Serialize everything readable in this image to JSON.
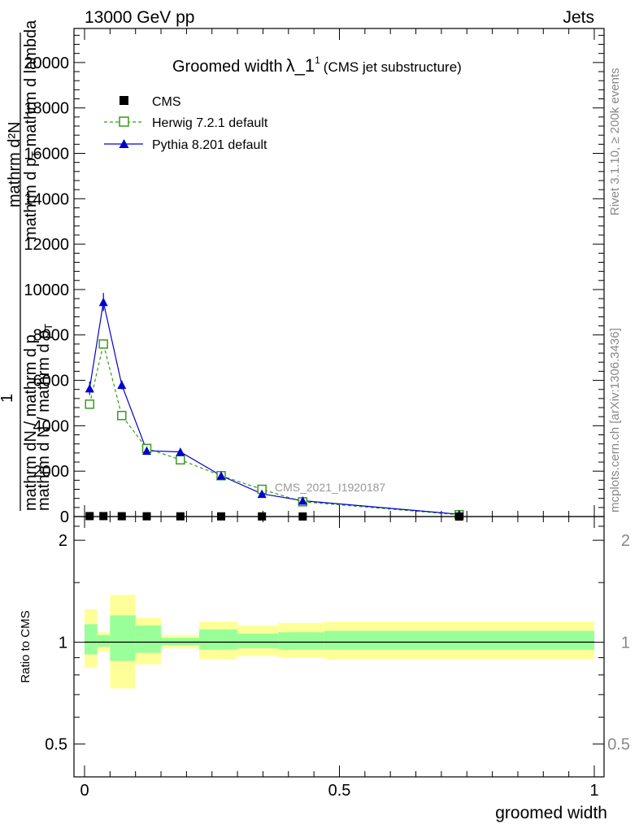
{
  "header": {
    "left": "13000 GeV pp",
    "right": "Jets",
    "rivet": "Rivet 3.1.10, ≥ 200k events",
    "mcplots": "mcplots.cern.ch [arXiv:1306.3436]",
    "analysis": "CMS_2021_I1920187"
  },
  "title": {
    "main": "Groomed width",
    "lambda": "λ_1",
    "sup": "1",
    "sub": "(CMS jet substructure)"
  },
  "ylabel": {
    "one": "1",
    "top1": "mathrm d²N",
    "top2": "mathrm d p",
    "top2_sub": "T",
    "top2_tail": " mathrm d lambda",
    "bottom1": "mathrm dN / mathrm d p",
    "bottom2": "mathrm d N / mathrm d p",
    "bottom2_sub": "T"
  },
  "legend": {
    "cms": "CMS",
    "herwig": "Herwig 7.2.1 default",
    "pythia": "Pythia 8.201 default"
  },
  "colors": {
    "cms": "#000000",
    "herwig": "#3a9a1e",
    "pythia": "#0000cc",
    "band_outer": "#ffff99",
    "band_inner": "#99ff99"
  },
  "chart_data": [
    {
      "type": "line",
      "xlabel": "",
      "ylabel": "1 / mathrm dN / mathrm d p_T · mathrm d²N / mathrm d p_T mathrm d lambda",
      "xlim": [
        0,
        1
      ],
      "ylim": [
        0,
        21500
      ],
      "y_ticks": [
        0,
        2000,
        4000,
        6000,
        8000,
        10000,
        12000,
        14000,
        16000,
        18000,
        20000
      ],
      "y_tick_labels": [
        "0",
        "2000",
        "4000",
        "6000",
        "8000",
        "10000",
        "12000",
        "14000",
        "16000",
        "18000",
        "20000"
      ],
      "series": [
        {
          "name": "CMS",
          "x": [
            0.01,
            0.037,
            0.073,
            0.122,
            0.188,
            0.268,
            0.348,
            0.428,
            0.735
          ],
          "y": [
            20,
            20,
            15,
            12,
            10,
            8,
            6,
            4,
            2
          ]
        },
        {
          "name": "Herwig 7.2.1 default",
          "x": [
            0.01,
            0.037,
            0.073,
            0.122,
            0.188,
            0.268,
            0.348,
            0.428,
            0.735
          ],
          "y": [
            4950,
            7600,
            4450,
            3000,
            2500,
            1800,
            1200,
            650,
            80
          ]
        },
        {
          "name": "Pythia 8.201 default",
          "x": [
            0.01,
            0.037,
            0.073,
            0.122,
            0.188,
            0.268,
            0.348,
            0.428,
            0.735
          ],
          "y": [
            5650,
            9450,
            5800,
            2900,
            2850,
            1800,
            1000,
            700,
            100
          ],
          "yerr": [
            300,
            400,
            200,
            80,
            80,
            60,
            40,
            30,
            10
          ]
        }
      ]
    },
    {
      "type": "area",
      "xlabel": "groomed width",
      "ylabel": "Ratio to CMS",
      "xlim": [
        0,
        1
      ],
      "ylim": [
        0.4,
        2.35
      ],
      "log_y": true,
      "y_ticks": [
        0.5,
        1,
        2
      ],
      "y_tick_labels": [
        "0.5",
        "1",
        "2"
      ],
      "x_ticks": [
        0,
        0.5,
        1
      ],
      "x_tick_labels": [
        "0",
        "0.5",
        "1"
      ],
      "bins": [
        0,
        0.025,
        0.05,
        0.1,
        0.15,
        0.225,
        0.3,
        0.38,
        0.47,
        1.0
      ],
      "band_outer": [
        [
          0.84,
          1.25
        ],
        [
          0.94,
          1.07
        ],
        [
          0.73,
          1.38
        ],
        [
          0.86,
          1.18
        ],
        [
          0.96,
          1.05
        ],
        [
          0.89,
          1.15
        ],
        [
          0.91,
          1.12
        ],
        [
          0.9,
          1.14
        ],
        [
          0.89,
          1.15
        ]
      ],
      "band_inner": [
        [
          0.92,
          1.13
        ],
        [
          0.97,
          1.05
        ],
        [
          0.88,
          1.2
        ],
        [
          0.93,
          1.12
        ],
        [
          0.98,
          1.03
        ],
        [
          0.95,
          1.09
        ],
        [
          0.96,
          1.06
        ],
        [
          0.95,
          1.07
        ],
        [
          0.95,
          1.08
        ]
      ],
      "reference": 1
    }
  ]
}
